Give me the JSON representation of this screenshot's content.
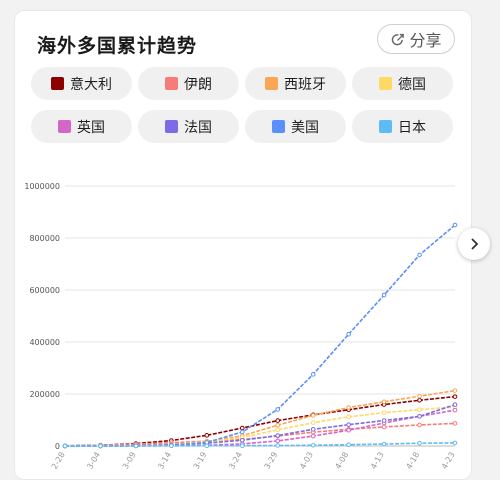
{
  "title": "海外多国累计趋势",
  "share_label": "分享",
  "legend": [
    {
      "name": "意大利",
      "color": "#8b0000"
    },
    {
      "name": "伊朗",
      "color": "#f77b7b"
    },
    {
      "name": "西班牙",
      "color": "#fba557"
    },
    {
      "name": "德国",
      "color": "#ffd966"
    },
    {
      "name": "英国",
      "color": "#d466c6"
    },
    {
      "name": "法国",
      "color": "#7b6be4"
    },
    {
      "name": "美国",
      "color": "#5b8ff9"
    },
    {
      "name": "日本",
      "color": "#5dbcf5"
    }
  ],
  "chart_data": {
    "type": "line",
    "x": [
      "2-28",
      "3-04",
      "3-09",
      "3-14",
      "3-19",
      "3-24",
      "3-29",
      "4-03",
      "4-08",
      "4-13",
      "4-18",
      "4-23"
    ],
    "ylim": [
      0,
      1000000
    ],
    "yticks": [
      "0",
      "200000",
      "400000",
      "600000",
      "800000",
      "1000000"
    ],
    "grid": true,
    "series": [
      {
        "name": "意大利",
        "color": "#8b0000",
        "values": [
          900,
          3100,
          9200,
          21200,
          41000,
          69200,
          97700,
          119800,
          139400,
          159500,
          175900,
          189900
        ]
      },
      {
        "name": "伊朗",
        "color": "#f77b7b",
        "values": [
          390,
          2900,
          7200,
          12700,
          18400,
          24800,
          38300,
          53200,
          64600,
          73300,
          80900,
          87000
        ]
      },
      {
        "name": "西班牙",
        "color": "#fba557",
        "values": [
          30,
          150,
          1200,
          6400,
          17100,
          39700,
          80000,
          117700,
          148200,
          170100,
          191700,
          213000
        ]
      },
      {
        "name": "德国",
        "color": "#ffd966",
        "values": [
          60,
          240,
          1200,
          4600,
          15300,
          32900,
          62100,
          89800,
          112000,
          128200,
          139900,
          150600
        ]
      },
      {
        "name": "英国",
        "color": "#d466c6",
        "values": [
          20,
          90,
          320,
          1140,
          2700,
          8100,
          19500,
          38200,
          60700,
          88600,
          114200,
          138000
        ]
      },
      {
        "name": "法国",
        "color": "#7b6be4",
        "values": [
          60,
          290,
          1400,
          4500,
          10900,
          22300,
          40200,
          64300,
          82000,
          98000,
          114000,
          159000
        ]
      },
      {
        "name": "美国",
        "color": "#5b8ff9",
        "values": [
          60,
          150,
          700,
          2700,
          13700,
          53700,
          140900,
          275600,
          430000,
          580600,
          735000,
          850000
        ]
      },
      {
        "name": "日本",
        "color": "#5dbcf5",
        "values": [
          230,
          290,
          500,
          800,
          950,
          1200,
          1900,
          2900,
          5000,
          7500,
          10800,
          12000
        ]
      }
    ]
  }
}
